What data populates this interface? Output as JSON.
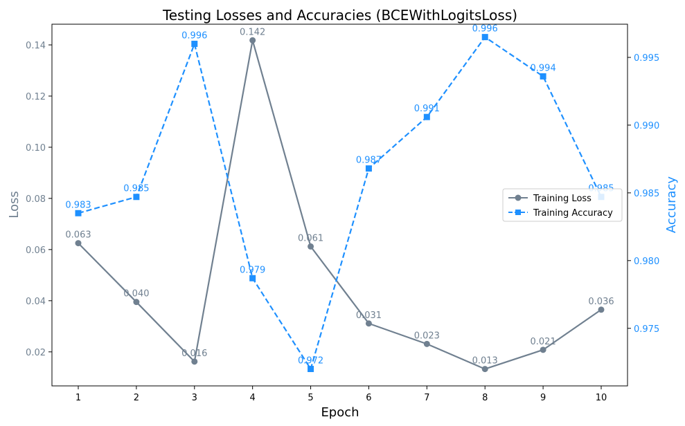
{
  "chart_data": {
    "type": "line",
    "title": "Testing Losses and Accuracies (BCEWithLogitsLoss)",
    "xlabel": "Epoch",
    "ylabel_left": "Loss",
    "ylabel_right": "Accuracy",
    "x": [
      1,
      2,
      3,
      4,
      5,
      6,
      7,
      8,
      9,
      10
    ],
    "xticks": [
      "1",
      "2",
      "3",
      "4",
      "5",
      "6",
      "7",
      "8",
      "9",
      "10"
    ],
    "ylim_left": [
      0.0067,
      0.1481
    ],
    "ylim_right": [
      0.97075,
      0.99745
    ],
    "yticks_left": [
      "0.02",
      "0.04",
      "0.06",
      "0.08",
      "0.10",
      "0.12",
      "0.14"
    ],
    "yticks_left_values": [
      0.02,
      0.04,
      0.06,
      0.08,
      0.1,
      0.12,
      0.14
    ],
    "yticks_right": [
      "0.975",
      "0.980",
      "0.985",
      "0.990",
      "0.995"
    ],
    "yticks_right_values": [
      0.975,
      0.98,
      0.985,
      0.99,
      0.995
    ],
    "grid": false,
    "legend_position": "center-right",
    "series": [
      {
        "name": "Training Loss",
        "axis": "left",
        "color": "#708090",
        "marker": "circle",
        "linestyle": "solid",
        "values": [
          0.0625,
          0.0395,
          0.0162,
          0.1418,
          0.0612,
          0.0311,
          0.0231,
          0.0133,
          0.0208,
          0.0365
        ],
        "labels": [
          "0.063",
          "0.040",
          "0.016",
          "0.142",
          "0.061",
          "0.031",
          "0.023",
          "0.013",
          "0.021",
          "0.036"
        ]
      },
      {
        "name": "Training Accuracy",
        "axis": "right",
        "color": "#1e90ff",
        "marker": "square",
        "linestyle": "dashed",
        "values": [
          0.9835,
          0.9847,
          0.996,
          0.9787,
          0.972,
          0.9868,
          0.9906,
          0.9965,
          0.9936,
          0.9847
        ],
        "labels": [
          "0.983",
          "0.985",
          "0.996",
          "0.979",
          "0.972",
          "0.987",
          "0.991",
          "0.996",
          "0.994",
          "0.985"
        ]
      }
    ]
  }
}
